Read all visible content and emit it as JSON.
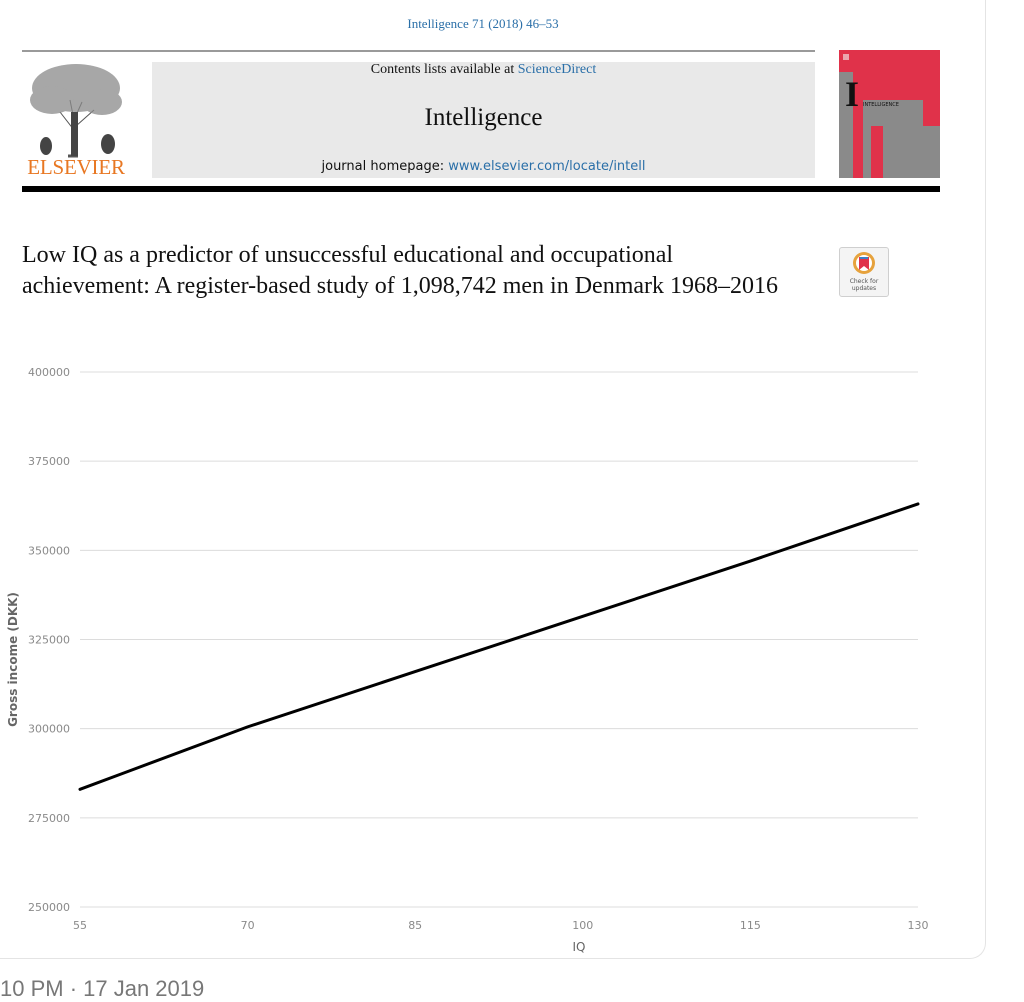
{
  "header": {
    "citation": "Intelligence 71 (2018) 46–53",
    "publisher": "ELSEVIER",
    "contents_prefix": "Contents lists available at ",
    "contents_link": "ScienceDirect",
    "journal": "Intelligence",
    "homepage_prefix": "journal homepage: ",
    "homepage_url": "www.elsevier.com/locate/intell",
    "cover_title": "INTELLIGENCE",
    "cover_letter": "I"
  },
  "article": {
    "title": "Low IQ as a predictor of unsuccessful educational and occupational achievement: A register-based study of 1,098,742 men in Denmark 1968–2016",
    "check_updates": "Check for updates"
  },
  "footer": {
    "timestamp": "10 PM · 17 Jan 2019"
  },
  "colors": {
    "link": "#2a6fa8",
    "elsevier_orange": "#e87722",
    "cover_red": "#e0324a",
    "cover_gray": "#8a8a8a"
  },
  "chart_data": {
    "type": "line",
    "title": "",
    "xlabel": "IQ",
    "ylabel": "Gross income (DKK)",
    "xlim": [
      55,
      130
    ],
    "ylim": [
      250000,
      400000
    ],
    "x_ticks": [
      "55",
      "70",
      "85",
      "100",
      "115",
      "130"
    ],
    "y_ticks": [
      "400000",
      "375000",
      "350000",
      "325000",
      "300000",
      "275000",
      "250000"
    ],
    "grid": true,
    "series": [
      {
        "x": [
          55,
          70,
          85,
          100,
          115,
          130
        ],
        "y": [
          283000,
          300500,
          316000,
          331500,
          347000,
          363000
        ]
      }
    ]
  }
}
